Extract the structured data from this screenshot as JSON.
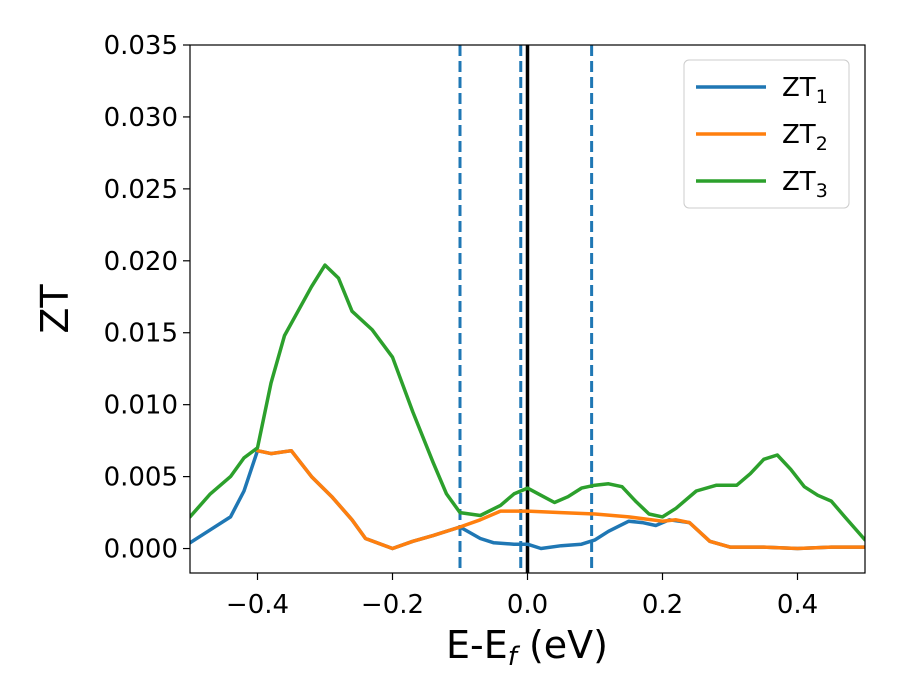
{
  "chart_data": {
    "type": "line",
    "xlabel": "E-E",
    "xlabel_sub": "f",
    "xlabel_suffix": " (eV)",
    "ylabel": "ZT",
    "xlim": [
      -0.5,
      0.5
    ],
    "ylim": [
      -0.0017,
      0.035
    ],
    "xticks": [
      -0.4,
      -0.2,
      0.0,
      0.2,
      0.4
    ],
    "xtick_labels": [
      "−0.4",
      "−0.2",
      "0.0",
      "0.2",
      "0.4"
    ],
    "yticks": [
      0.0,
      0.005,
      0.01,
      0.015,
      0.02,
      0.025,
      0.03,
      0.035
    ],
    "ytick_labels": [
      "0.000",
      "0.005",
      "0.010",
      "0.015",
      "0.020",
      "0.025",
      "0.030",
      "0.035"
    ],
    "legend_position": "top-right",
    "grid": false,
    "vlines": [
      {
        "x": -0.1,
        "style": "dashed",
        "color": "#1f77b4"
      },
      {
        "x": -0.01,
        "style": "dashed",
        "color": "#1f77b4"
      },
      {
        "x": 0.0,
        "style": "solid",
        "color": "#000000"
      },
      {
        "x": 0.095,
        "style": "dashed",
        "color": "#1f77b4"
      }
    ],
    "series": [
      {
        "name": "ZT",
        "name_sub": "1",
        "color": "#1f77b4",
        "points": [
          [
            -0.5,
            0.0004
          ],
          [
            -0.47,
            0.0013
          ],
          [
            -0.44,
            0.0022
          ],
          [
            -0.42,
            0.004
          ],
          [
            -0.4,
            0.0068
          ],
          [
            -0.38,
            0.0066
          ],
          [
            -0.35,
            0.0068
          ],
          [
            -0.32,
            0.005
          ],
          [
            -0.29,
            0.0036
          ],
          [
            -0.26,
            0.002
          ],
          [
            -0.24,
            0.0007
          ],
          [
            -0.2,
            0.0
          ],
          [
            -0.17,
            0.0005
          ],
          [
            -0.14,
            0.0009
          ],
          [
            -0.1,
            0.0015
          ],
          [
            -0.07,
            0.0007
          ],
          [
            -0.05,
            0.0004
          ],
          [
            -0.02,
            0.0003
          ],
          [
            0.0,
            0.0003
          ],
          [
            0.02,
            0.0
          ],
          [
            0.05,
            0.0002
          ],
          [
            0.08,
            0.0003
          ],
          [
            0.1,
            0.0006
          ],
          [
            0.12,
            0.0012
          ],
          [
            0.15,
            0.0019
          ],
          [
            0.17,
            0.0018
          ],
          [
            0.19,
            0.0016
          ],
          [
            0.21,
            0.002
          ],
          [
            0.24,
            0.0018
          ],
          [
            0.27,
            0.0005
          ],
          [
            0.3,
            0.0001
          ],
          [
            0.35,
            0.0001
          ],
          [
            0.4,
            0.0
          ],
          [
            0.45,
            0.0001
          ],
          [
            0.5,
            0.0001
          ]
        ]
      },
      {
        "name": "ZT",
        "name_sub": "2",
        "color": "#ff7f0e",
        "points": [
          [
            -0.4,
            0.0068
          ],
          [
            -0.38,
            0.0066
          ],
          [
            -0.35,
            0.0068
          ],
          [
            -0.32,
            0.005
          ],
          [
            -0.29,
            0.0036
          ],
          [
            -0.26,
            0.002
          ],
          [
            -0.24,
            0.0007
          ],
          [
            -0.2,
            0.0
          ],
          [
            -0.17,
            0.0005
          ],
          [
            -0.14,
            0.0009
          ],
          [
            -0.1,
            0.0015
          ],
          [
            -0.07,
            0.002
          ],
          [
            -0.04,
            0.0026
          ],
          [
            0.0,
            0.0026
          ],
          [
            0.05,
            0.0025
          ],
          [
            0.1,
            0.0024
          ],
          [
            0.15,
            0.0022
          ],
          [
            0.2,
            0.0019
          ],
          [
            0.22,
            0.002
          ],
          [
            0.24,
            0.0018
          ],
          [
            0.27,
            0.0005
          ],
          [
            0.3,
            0.0001
          ],
          [
            0.35,
            0.0001
          ],
          [
            0.4,
            0.0
          ],
          [
            0.45,
            0.0001
          ],
          [
            0.5,
            0.0001
          ]
        ]
      },
      {
        "name": "ZT",
        "name_sub": "3",
        "color": "#2ca02c",
        "points": [
          [
            -0.5,
            0.0022
          ],
          [
            -0.47,
            0.0038
          ],
          [
            -0.44,
            0.005
          ],
          [
            -0.42,
            0.0063
          ],
          [
            -0.4,
            0.007
          ],
          [
            -0.38,
            0.0115
          ],
          [
            -0.36,
            0.0148
          ],
          [
            -0.34,
            0.0165
          ],
          [
            -0.32,
            0.0182
          ],
          [
            -0.3,
            0.0197
          ],
          [
            -0.28,
            0.0188
          ],
          [
            -0.26,
            0.0165
          ],
          [
            -0.23,
            0.0152
          ],
          [
            -0.2,
            0.0133
          ],
          [
            -0.17,
            0.0095
          ],
          [
            -0.14,
            0.006
          ],
          [
            -0.12,
            0.0038
          ],
          [
            -0.1,
            0.0025
          ],
          [
            -0.07,
            0.0023
          ],
          [
            -0.04,
            0.003
          ],
          [
            -0.02,
            0.0038
          ],
          [
            0.0,
            0.0042
          ],
          [
            0.02,
            0.0037
          ],
          [
            0.04,
            0.0032
          ],
          [
            0.06,
            0.0036
          ],
          [
            0.08,
            0.0042
          ],
          [
            0.1,
            0.0044
          ],
          [
            0.12,
            0.0045
          ],
          [
            0.14,
            0.0043
          ],
          [
            0.16,
            0.0033
          ],
          [
            0.18,
            0.0024
          ],
          [
            0.2,
            0.0022
          ],
          [
            0.22,
            0.0028
          ],
          [
            0.25,
            0.004
          ],
          [
            0.28,
            0.0044
          ],
          [
            0.31,
            0.0044
          ],
          [
            0.33,
            0.0052
          ],
          [
            0.35,
            0.0062
          ],
          [
            0.37,
            0.0065
          ],
          [
            0.39,
            0.0055
          ],
          [
            0.41,
            0.0043
          ],
          [
            0.43,
            0.0037
          ],
          [
            0.45,
            0.0033
          ],
          [
            0.47,
            0.0022
          ],
          [
            0.5,
            0.0006
          ]
        ]
      }
    ]
  }
}
